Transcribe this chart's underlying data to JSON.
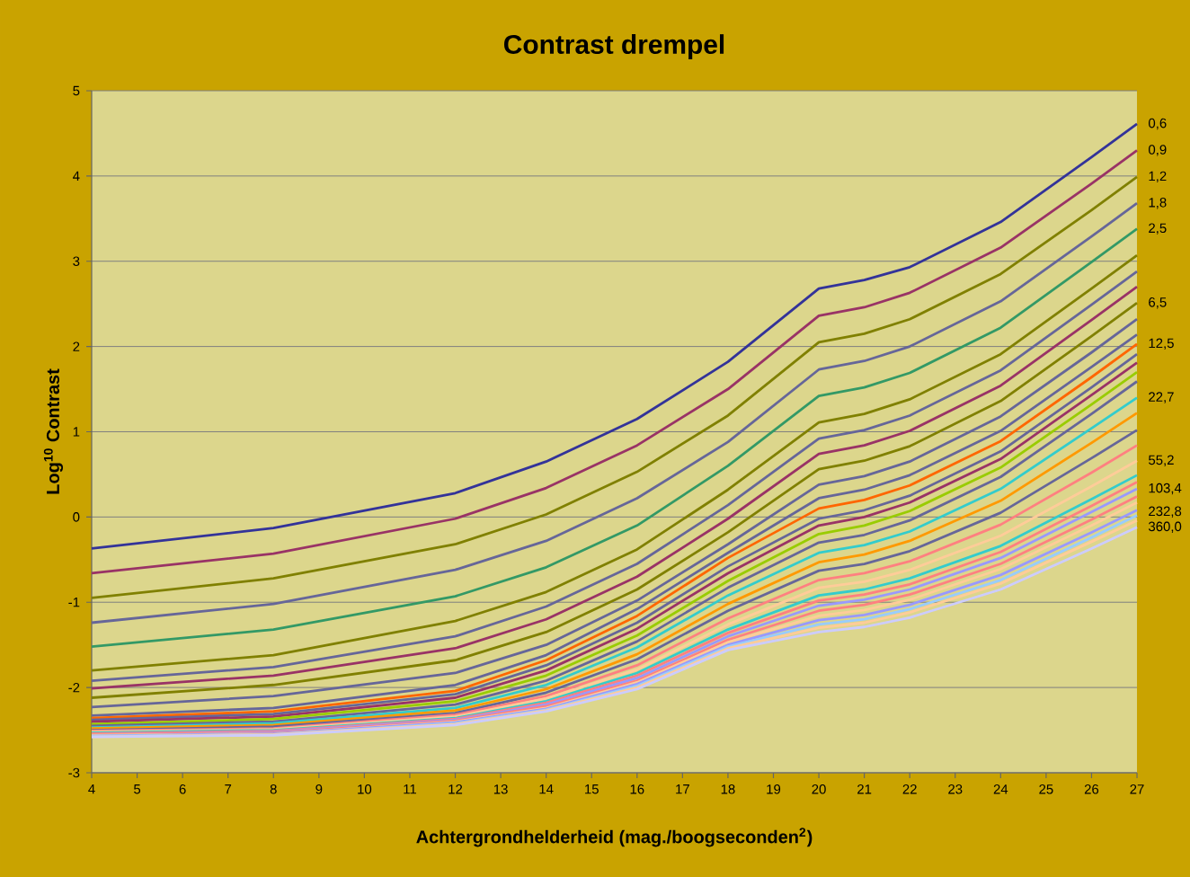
{
  "chart_data": {
    "type": "line",
    "title": "Contrast drempel",
    "xlabel": "Achtergrondhelderheid (mag./boogseconden$^{2}$)",
    "ylabel": "Log$^{10}$ Contrast",
    "x": [
      4,
      8,
      12,
      14,
      16,
      18,
      20,
      21,
      22,
      24,
      26,
      27
    ],
    "xlim": [
      4,
      27
    ],
    "ylim": [
      -3,
      5
    ],
    "xticks": [
      4,
      5,
      6,
      7,
      8,
      9,
      10,
      11,
      12,
      13,
      14,
      15,
      16,
      17,
      18,
      19,
      20,
      21,
      22,
      23,
      24,
      25,
      26,
      27
    ],
    "yticks": [
      -3,
      -2,
      -1,
      0,
      1,
      2,
      3,
      4,
      5
    ],
    "grid": "y",
    "marker": "none",
    "line_style": "solid",
    "series": [
      {
        "name": "0,6",
        "color": "#333399",
        "values": [
          -0.37,
          -0.13,
          0.28,
          0.65,
          1.15,
          1.82,
          2.68,
          2.78,
          2.93,
          3.46,
          4.22,
          4.61
        ]
      },
      {
        "name": "0,9",
        "color": "#993366",
        "values": [
          -0.66,
          -0.43,
          -0.02,
          0.34,
          0.84,
          1.5,
          2.36,
          2.46,
          2.63,
          3.16,
          3.91,
          4.3
        ]
      },
      {
        "name": "1,2",
        "color": "#808000",
        "values": [
          -0.95,
          -0.72,
          -0.32,
          0.03,
          0.53,
          1.19,
          2.05,
          2.15,
          2.32,
          2.85,
          3.6,
          3.99
        ]
      },
      {
        "name": "1,8",
        "color": "#666699",
        "values": [
          -1.24,
          -1.02,
          -0.62,
          -0.28,
          0.22,
          0.88,
          1.73,
          1.83,
          2.0,
          2.53,
          3.29,
          3.68
        ]
      },
      {
        "name": "2,5",
        "color": "#339966",
        "values": [
          -1.52,
          -1.32,
          -0.93,
          -0.59,
          -0.1,
          0.6,
          1.42,
          1.52,
          1.69,
          2.22,
          2.99,
          3.38
        ]
      },
      {
        "color": "#808000",
        "values": [
          -1.8,
          -1.62,
          -1.22,
          -0.88,
          -0.38,
          0.32,
          1.11,
          1.21,
          1.38,
          1.91,
          2.68,
          3.07
        ]
      },
      {
        "color": "#666699",
        "values": [
          -1.92,
          -1.76,
          -1.4,
          -1.05,
          -0.55,
          0.14,
          0.92,
          1.02,
          1.19,
          1.72,
          2.49,
          2.88
        ]
      },
      {
        "color": "#993366",
        "values": [
          -2.01,
          -1.86,
          -1.54,
          -1.2,
          -0.7,
          -0.02,
          0.74,
          0.84,
          1.01,
          1.54,
          2.31,
          2.7
        ]
      },
      {
        "name": "6,5",
        "color": "#808000",
        "values": [
          -2.12,
          -1.97,
          -1.68,
          -1.35,
          -0.85,
          -0.18,
          0.56,
          0.66,
          0.83,
          1.36,
          2.12,
          2.51
        ]
      },
      {
        "color": "#666699",
        "values": [
          -2.23,
          -2.1,
          -1.83,
          -1.5,
          -0.98,
          -0.32,
          0.38,
          0.48,
          0.65,
          1.18,
          1.93,
          2.32
        ]
      },
      {
        "color": "#666699",
        "values": [
          -2.33,
          -2.24,
          -1.97,
          -1.62,
          -1.08,
          -0.42,
          0.22,
          0.32,
          0.49,
          1.01,
          1.76,
          2.14
        ]
      },
      {
        "name": "12,5",
        "color": "#ff6600",
        "values": [
          -2.36,
          -2.28,
          -2.04,
          -1.68,
          -1.16,
          -0.48,
          0.1,
          0.2,
          0.37,
          0.89,
          1.64,
          2.03
        ]
      },
      {
        "color": "#666699",
        "values": [
          -2.38,
          -2.31,
          -2.08,
          -1.74,
          -1.24,
          -0.58,
          -0.02,
          0.08,
          0.25,
          0.77,
          1.52,
          1.91
        ]
      },
      {
        "color": "#993366",
        "values": [
          -2.4,
          -2.34,
          -2.12,
          -1.8,
          -1.31,
          -0.66,
          -0.1,
          0.0,
          0.17,
          0.68,
          1.43,
          1.81
        ]
      },
      {
        "color": "#99cc00",
        "values": [
          -2.43,
          -2.37,
          -2.16,
          -1.86,
          -1.39,
          -0.75,
          -0.2,
          -0.1,
          0.07,
          0.58,
          1.32,
          1.7
        ]
      },
      {
        "color": "#666699",
        "values": [
          -2.45,
          -2.4,
          -2.2,
          -1.92,
          -1.46,
          -0.83,
          -0.3,
          -0.21,
          -0.04,
          0.47,
          1.21,
          1.59
        ]
      },
      {
        "name": "22,7",
        "color": "#33cccc",
        "values": [
          -2.47,
          -2.42,
          -2.24,
          -1.97,
          -1.53,
          -0.92,
          -0.42,
          -0.33,
          -0.17,
          0.33,
          1.04,
          1.4
        ]
      },
      {
        "color": "#ff9900",
        "values": [
          -2.48,
          -2.44,
          -2.27,
          -2.02,
          -1.61,
          -1.02,
          -0.53,
          -0.44,
          -0.28,
          0.19,
          0.87,
          1.22
        ]
      },
      {
        "color": "#666699",
        "values": [
          -2.5,
          -2.46,
          -2.3,
          -2.06,
          -1.67,
          -1.1,
          -0.63,
          -0.55,
          -0.4,
          0.05,
          0.69,
          1.02
        ]
      },
      {
        "color": "#ff8080",
        "values": [
          -2.51,
          -2.48,
          -2.32,
          -2.1,
          -1.74,
          -1.19,
          -0.74,
          -0.66,
          -0.52,
          -0.09,
          0.52,
          0.84
        ]
      },
      {
        "name": "55,2",
        "color": "#ffcc99",
        "values": [
          -2.52,
          -2.49,
          -2.34,
          -2.13,
          -1.79,
          -1.26,
          -0.83,
          -0.76,
          -0.62,
          -0.22,
          0.36,
          0.66
        ]
      },
      {
        "color": "#33cccc",
        "values": [
          -2.53,
          -2.5,
          -2.36,
          -2.16,
          -1.83,
          -1.32,
          -0.92,
          -0.85,
          -0.72,
          -0.34,
          0.21,
          0.49
        ]
      },
      {
        "color": "#ff8080",
        "values": [
          -2.54,
          -2.51,
          -2.37,
          -2.18,
          -1.86,
          -1.36,
          -0.98,
          -0.91,
          -0.79,
          -0.41,
          0.13,
          0.41
        ]
      },
      {
        "name": "103,4",
        "color": "#9999ff",
        "values": [
          -2.55,
          -2.52,
          -2.38,
          -2.2,
          -1.89,
          -1.4,
          -1.04,
          -0.97,
          -0.85,
          -0.48,
          0.06,
          0.33
        ]
      },
      {
        "color": "#ff8080",
        "values": [
          -2.55,
          -2.53,
          -2.39,
          -2.22,
          -1.92,
          -1.44,
          -1.1,
          -1.03,
          -0.91,
          -0.55,
          -0.03,
          0.24
        ]
      },
      {
        "color": "#ffcc99",
        "values": [
          -2.56,
          -2.54,
          -2.4,
          -2.24,
          -1.94,
          -1.47,
          -1.16,
          -1.09,
          -0.97,
          -0.61,
          -0.1,
          0.17
        ]
      },
      {
        "color": "#9999ff",
        "values": [
          -2.57,
          -2.54,
          -2.41,
          -2.25,
          -1.96,
          -1.5,
          -1.21,
          -1.15,
          -1.03,
          -0.68,
          -0.18,
          0.08
        ]
      },
      {
        "name": "232,8",
        "color": "#99ccff",
        "values": [
          -2.57,
          -2.55,
          -2.42,
          -2.26,
          -1.98,
          -1.52,
          -1.26,
          -1.2,
          -1.08,
          -0.74,
          -0.24,
          0.02
        ]
      },
      {
        "color": "#ffcc99",
        "values": [
          -2.58,
          -2.55,
          -2.43,
          -2.27,
          -2.0,
          -1.54,
          -1.3,
          -1.24,
          -1.12,
          -0.78,
          -0.29,
          -0.04
        ]
      },
      {
        "name": "360,0",
        "color": "#ccccff",
        "values": [
          -2.58,
          -2.56,
          -2.44,
          -2.28,
          -2.02,
          -1.56,
          -1.35,
          -1.29,
          -1.18,
          -0.85,
          -0.37,
          -0.12
        ]
      }
    ]
  }
}
